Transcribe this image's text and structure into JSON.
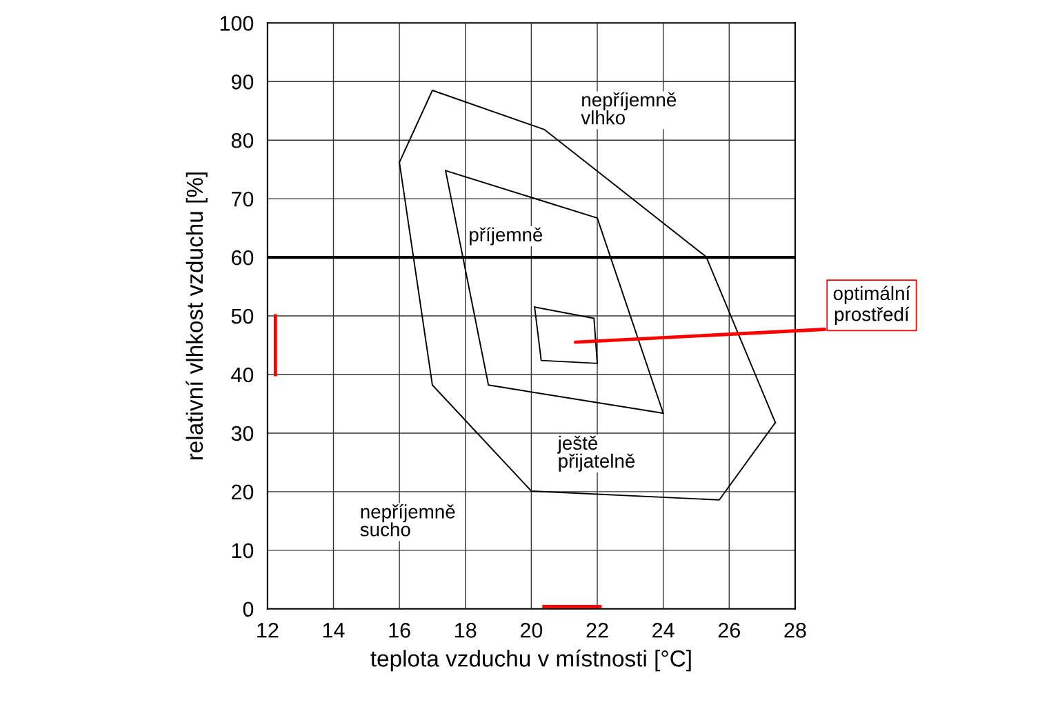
{
  "chart_data": {
    "type": "line",
    "xlabel": "teplota vzduchu v místnosti [°C]",
    "ylabel": "relativní vlhkost vzduchu [%]",
    "xlim": [
      12,
      28
    ],
    "xticks": [
      12,
      14,
      16,
      18,
      20,
      22,
      24,
      26,
      28
    ],
    "ylim": [
      0,
      100
    ],
    "yticks": [
      0,
      10,
      20,
      30,
      40,
      50,
      60,
      70,
      80,
      90,
      100
    ],
    "grid": true,
    "legend": false,
    "marker": "none",
    "line_style": "solid",
    "series": [
      {
        "color": "#000000",
        "x": [
          16.0,
          17.0,
          20.4,
          25.3,
          27.4
        ],
        "values": [
          76.2,
          88.5,
          81.8,
          60.1,
          31.8
        ]
      },
      {
        "color": "#000000",
        "x": [
          16.0,
          17.0,
          20.0,
          25.7,
          27.4
        ],
        "values": [
          76.2,
          38.2,
          20.1,
          18.6,
          31.8
        ]
      },
      {
        "color": "#000000",
        "x": [
          17.4,
          22.0,
          24.0
        ],
        "values": [
          74.8,
          66.7,
          33.4
        ]
      },
      {
        "color": "#000000",
        "x": [
          17.4,
          18.7,
          24.0
        ],
        "values": [
          74.8,
          38.2,
          33.4
        ]
      },
      {
        "color": "#000000",
        "x": [
          20.1,
          21.9,
          22.0
        ],
        "values": [
          51.5,
          49.6,
          41.9
        ]
      },
      {
        "color": "#000000",
        "x": [
          20.1,
          20.3,
          22.0
        ],
        "values": [
          51.5,
          42.4,
          41.9
        ]
      }
    ],
    "ref_lines": [
      {
        "axis": "y",
        "value": 60,
        "color": "#000000"
      }
    ],
    "annotations": [
      "nepříjemně\nvlhko",
      "příjemně",
      "ještě\npřijatelně",
      "nepříjemně\nsucho",
      "optimální\nprostředí"
    ]
  }
}
